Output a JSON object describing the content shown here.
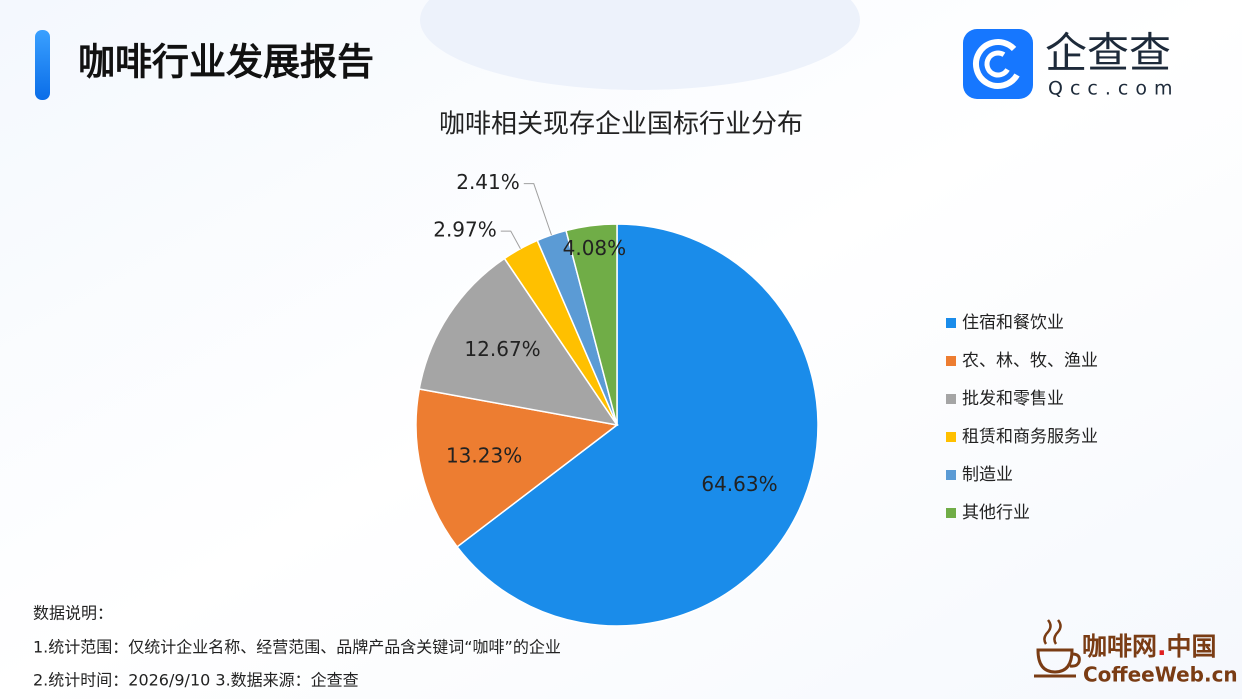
{
  "header": {
    "title": "咖啡行业发展报告",
    "logo_name": "企查查",
    "logo_url": "Qcc.com"
  },
  "chart_data": {
    "type": "pie",
    "title": "咖啡相关现存企业国标行业分布",
    "categories": [
      "住宿和餐饮业",
      "农、林、牧、渔业",
      "批发和零售业",
      "租赁和商务服务业",
      "制造业",
      "其他行业"
    ],
    "values": [
      64.63,
      13.23,
      12.67,
      2.97,
      2.41,
      4.08
    ],
    "value_labels": [
      "64.63%",
      "13.23%",
      "12.67%",
      "2.97%",
      "2.41%",
      "4.08%"
    ],
    "colors": [
      "#1a8cea",
      "#ed7d31",
      "#a5a5a5",
      "#ffc000",
      "#5b9bd5",
      "#70ad47"
    ],
    "legend": "right"
  },
  "notes": {
    "heading": "数据说明：",
    "lines": [
      "1.统计范围：仅统计企业名称、经营范围、品牌产品含关键词“咖啡”的企业",
      "2.统计时间：2026/9/10 3.数据来源：企查查"
    ]
  },
  "brand": {
    "name_left": "咖啡网",
    "dot": ".",
    "name_right": "中国",
    "url": "CoffeeWeb.cn"
  }
}
